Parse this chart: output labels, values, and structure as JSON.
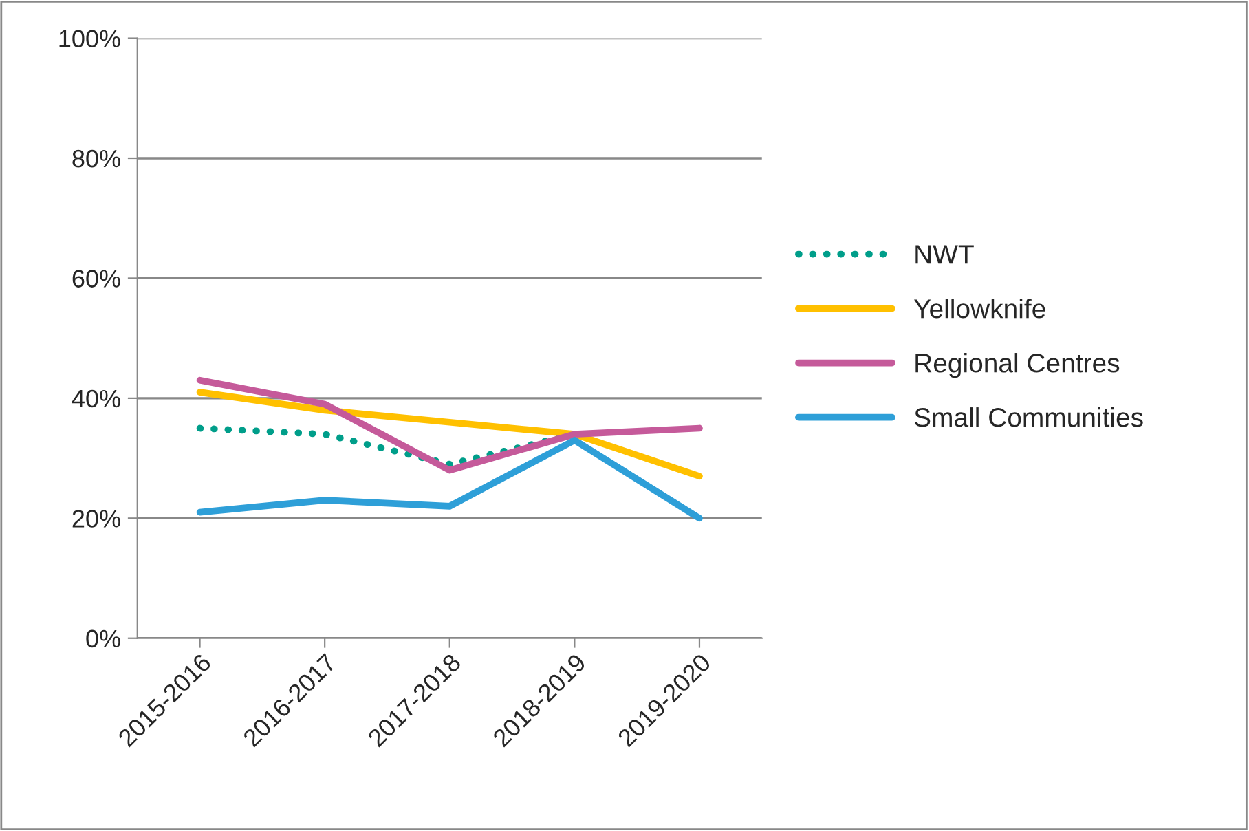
{
  "chart_data": {
    "type": "line",
    "categories": [
      "2015-2016",
      "2016-2017",
      "2017-2018",
      "2018-2019",
      "2019-2020"
    ],
    "series": [
      {
        "name": "NWT",
        "color": "#009e8a",
        "values": [
          35,
          34,
          29,
          34,
          null
        ],
        "line_style": "dotted"
      },
      {
        "name": "Yellowknife",
        "color": "#ffc000",
        "values": [
          41,
          38,
          36,
          34,
          27
        ]
      },
      {
        "name": "Regional Centres",
        "color": "#c55a9a",
        "values": [
          43,
          39,
          28,
          34,
          35
        ]
      },
      {
        "name": "Small Communities",
        "color": "#2e9fd8",
        "values": [
          21,
          23,
          22,
          33,
          20
        ]
      }
    ],
    "ylim": [
      0,
      100
    ],
    "yticks": [
      {
        "value": 0,
        "label": "0%"
      },
      {
        "value": 20,
        "label": "20%"
      },
      {
        "value": 40,
        "label": "40%"
      },
      {
        "value": 60,
        "label": "60%"
      },
      {
        "value": 80,
        "label": "80%"
      },
      {
        "value": 100,
        "label": "100%"
      }
    ],
    "grid": "y",
    "legend": "right"
  }
}
